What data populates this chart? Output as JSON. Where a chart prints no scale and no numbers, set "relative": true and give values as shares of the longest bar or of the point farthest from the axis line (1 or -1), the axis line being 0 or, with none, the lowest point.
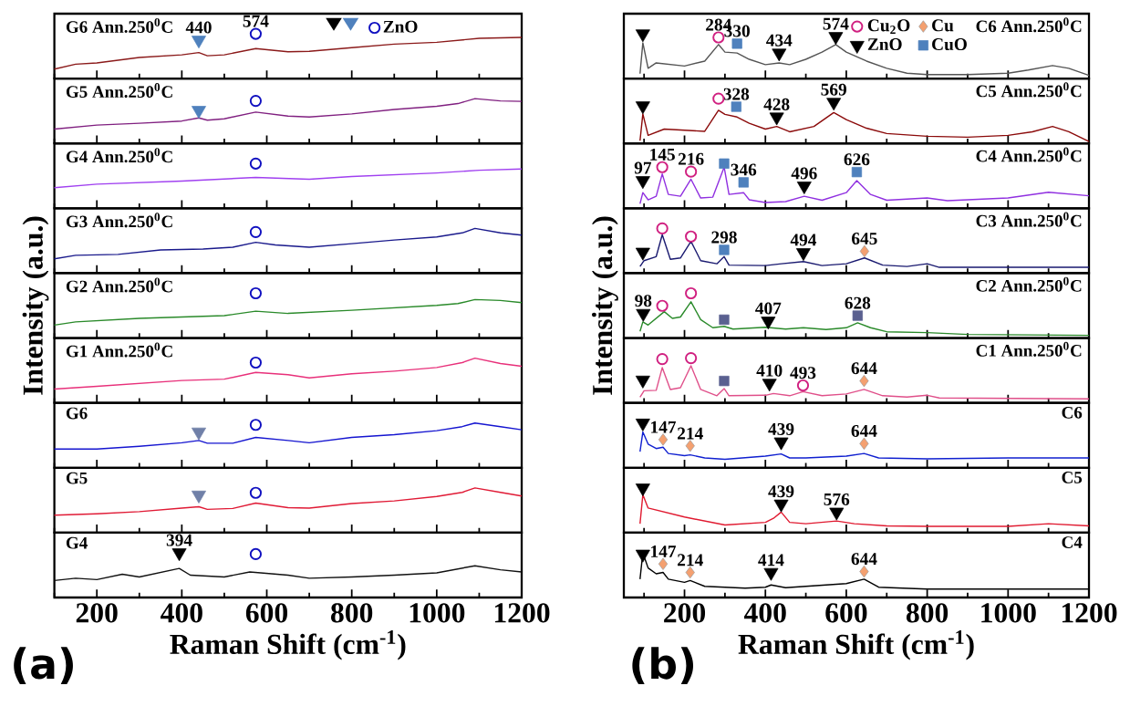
{
  "chart_data": [
    {
      "type": "line",
      "relative": true,
      "title": "G6 Ann.250$^{0}$C",
      "xlim": [
        100,
        1200
      ],
      "tick_labels": false,
      "legend": "top",
      "xticks": [
        {
          "value": 100,
          "label": null
        },
        200,
        {
          "value": 300,
          "label": null
        },
        400,
        {
          "value": 500,
          "label": null
        },
        600,
        {
          "value": 700,
          "label": null
        },
        800,
        {
          "value": 900,
          "label": null
        },
        1000,
        {
          "value": 1100,
          "label": null
        },
        1200
      ],
      "series": [
        {
          "color": "#8b1a1a",
          "x": [
            100,
            150,
            200,
            300,
            400,
            440,
            460,
            500,
            574,
            650,
            700,
            800,
            900,
            1000,
            1100,
            1200
          ],
          "values": [
            0.21,
            0.32,
            0.35,
            0.47,
            0.53,
            0.58,
            0.51,
            0.53,
            0.67,
            0.6,
            0.61,
            0.69,
            0.77,
            0.81,
            0.9,
            0.92
          ]
        },
        {
          "type": "scatter",
          "marker": "triangle",
          "color": "#000000"
        },
        {
          "type": "scatter",
          "marker": "triangle",
          "color": "#4f81bd",
          "x": [
            440
          ],
          "values": [
            0.86
          ]
        },
        {
          "type": "scatter",
          "marker": "circle",
          "name": "ZnO",
          "color": "#1010c0",
          "x": [
            574
          ],
          "values": [
            1
          ]
        }
      ],
      "annotations": [
        {
          "text": "440",
          "x": 440,
          "y": 0.86
        },
        {
          "text": "574",
          "x": 574,
          "y": 1
        }
      ]
    },
    {
      "type": "line",
      "relative": true,
      "title": "G5 Ann.250$^{0}$C",
      "xlim": [
        100,
        1200
      ],
      "tick_labels": false,
      "xticks": [
        {
          "value": 100,
          "label": null
        },
        200,
        {
          "value": 300,
          "label": null
        },
        400,
        {
          "value": 500,
          "label": null
        },
        600,
        {
          "value": 700,
          "label": null
        },
        800,
        {
          "value": 900,
          "label": null
        },
        1000,
        {
          "value": 1100,
          "label": null
        },
        1200
      ],
      "series": [
        {
          "color": "#802080",
          "x": [
            100,
            200,
            300,
            400,
            440,
            460,
            500,
            574,
            650,
            700,
            800,
            900,
            1000,
            1050,
            1090,
            1150,
            1200
          ],
          "values": [
            0.32,
            0.41,
            0.45,
            0.5,
            0.57,
            0.52,
            0.55,
            0.7,
            0.61,
            0.59,
            0.66,
            0.76,
            0.83,
            0.89,
            1,
            0.95,
            0.94
          ]
        },
        {
          "type": "scatter",
          "marker": "triangle",
          "color": "#4f81bd",
          "x": [
            440
          ],
          "values": [
            0.74
          ]
        },
        {
          "type": "scatter",
          "marker": "circle",
          "color": "#1010c0",
          "x": [
            574
          ],
          "values": [
            0.95
          ]
        }
      ]
    },
    {
      "type": "line",
      "relative": true,
      "title": "G4 Ann.250$^{0}$C",
      "xlim": [
        100,
        1200
      ],
      "tick_labels": false,
      "xticks": [
        {
          "value": 100,
          "label": null
        },
        200,
        {
          "value": 300,
          "label": null
        },
        400,
        {
          "value": 500,
          "label": null
        },
        600,
        {
          "value": 700,
          "label": null
        },
        800,
        {
          "value": 900,
          "label": null
        },
        1000,
        {
          "value": 1100,
          "label": null
        },
        1200
      ],
      "series": [
        {
          "color": "#a040f0",
          "x": [
            100,
            200,
            400,
            574,
            700,
            800,
            1000,
            1100,
            1200
          ],
          "values": [
            0.46,
            0.54,
            0.61,
            0.69,
            0.65,
            0.71,
            0.79,
            0.85,
            0.88
          ]
        },
        {
          "type": "scatter",
          "marker": "circle",
          "color": "#1010c0",
          "x": [
            574
          ],
          "values": [
            1
          ]
        }
      ]
    },
    {
      "type": "line",
      "relative": true,
      "title": "G3 Ann.250$^{0}$C",
      "xlim": [
        100,
        1200
      ],
      "tick_labels": false,
      "xticks": [
        {
          "value": 100,
          "label": null
        },
        200,
        {
          "value": 300,
          "label": null
        },
        400,
        {
          "value": 500,
          "label": null
        },
        600,
        {
          "value": 700,
          "label": null
        },
        800,
        {
          "value": 900,
          "label": null
        },
        1000,
        {
          "value": 1100,
          "label": null
        },
        1200
      ],
      "series": [
        {
          "color": "#1a1a8c",
          "x": [
            100,
            150,
            250,
            350,
            450,
            520,
            574,
            620,
            700,
            800,
            900,
            1000,
            1060,
            1090,
            1150,
            1200
          ],
          "values": [
            0.32,
            0.4,
            0.42,
            0.52,
            0.54,
            0.58,
            0.69,
            0.63,
            0.58,
            0.66,
            0.74,
            0.81,
            0.9,
            1,
            0.9,
            0.85
          ]
        },
        {
          "type": "scatter",
          "marker": "circle",
          "color": "#1010c0",
          "x": [
            574
          ],
          "values": [
            0.92
          ]
        }
      ]
    },
    {
      "type": "line",
      "relative": true,
      "title": "G2 Ann.250$^{0}$C",
      "ylabel": "Intensity (a.u.)",
      "xlim": [
        100,
        1200
      ],
      "tick_labels": false,
      "xticks": [
        {
          "value": 100,
          "label": null
        },
        200,
        {
          "value": 300,
          "label": null
        },
        400,
        {
          "value": 500,
          "label": null
        },
        600,
        {
          "value": 700,
          "label": null
        },
        800,
        {
          "value": 900,
          "label": null
        },
        1000,
        {
          "value": 1100,
          "label": null
        },
        1200
      ],
      "series": [
        {
          "color": "#2a8a2a",
          "x": [
            100,
            150,
            300,
            500,
            574,
            650,
            800,
            1000,
            1050,
            1090,
            1150,
            1200
          ],
          "values": [
            0.29,
            0.36,
            0.44,
            0.5,
            0.6,
            0.55,
            0.62,
            0.73,
            0.77,
            0.86,
            0.84,
            0.79
          ]
        },
        {
          "type": "scatter",
          "marker": "circle",
          "color": "#1010c0",
          "x": [
            574
          ],
          "values": [
            1
          ]
        }
      ]
    },
    {
      "type": "line",
      "relative": true,
      "title": "G1 Ann.250$^{0}$C",
      "xlim": [
        100,
        1200
      ],
      "tick_labels": false,
      "xticks": [
        {
          "value": 100,
          "label": null
        },
        200,
        {
          "value": 300,
          "label": null
        },
        400,
        {
          "value": 500,
          "label": null
        },
        600,
        {
          "value": 700,
          "label": null
        },
        800,
        {
          "value": 900,
          "label": null
        },
        1000,
        {
          "value": 1100,
          "label": null
        },
        1200
      ],
      "series": [
        {
          "color": "#e8307a",
          "x": [
            100,
            200,
            400,
            500,
            574,
            650,
            700,
            800,
            900,
            1000,
            1060,
            1090,
            1150,
            1200
          ],
          "values": [
            0.31,
            0.37,
            0.5,
            0.53,
            0.68,
            0.63,
            0.56,
            0.65,
            0.71,
            0.79,
            0.9,
            1,
            0.88,
            0.82
          ]
        },
        {
          "type": "scatter",
          "marker": "circle",
          "color": "#1010c0",
          "x": [
            574
          ],
          "values": [
            0.9
          ]
        }
      ]
    },
    {
      "type": "line",
      "relative": true,
      "title": "G6",
      "xlim": [
        100,
        1200
      ],
      "tick_labels": false,
      "xticks": [
        {
          "value": 100,
          "label": null
        },
        200,
        {
          "value": 300,
          "label": null
        },
        400,
        {
          "value": 500,
          "label": null
        },
        600,
        {
          "value": 700,
          "label": null
        },
        800,
        {
          "value": 900,
          "label": null
        },
        1000,
        {
          "value": 1100,
          "label": null
        },
        1200
      ],
      "series": [
        {
          "color": "#1515d0",
          "x": [
            100,
            200,
            300,
            400,
            440,
            460,
            520,
            574,
            650,
            700,
            800,
            900,
            1000,
            1060,
            1090,
            1150,
            1200
          ],
          "values": [
            0.42,
            0.42,
            0.48,
            0.56,
            0.61,
            0.55,
            0.55,
            0.68,
            0.61,
            0.56,
            0.68,
            0.74,
            0.83,
            0.92,
            1,
            0.92,
            0.85
          ]
        },
        {
          "type": "scatter",
          "marker": "triangle",
          "color": "#7080a8",
          "x": [
            440
          ],
          "values": [
            0.8
          ]
        },
        {
          "type": "scatter",
          "marker": "circle",
          "color": "#1010c0",
          "x": [
            574
          ],
          "values": [
            0.96
          ]
        }
      ]
    },
    {
      "type": "line",
      "relative": true,
      "title": "G5",
      "xlim": [
        100,
        1200
      ],
      "tick_labels": false,
      "xticks": [
        {
          "value": 100,
          "label": null
        },
        200,
        {
          "value": 300,
          "label": null
        },
        400,
        {
          "value": 500,
          "label": null
        },
        600,
        {
          "value": 700,
          "label": null
        },
        800,
        {
          "value": 900,
          "label": null
        },
        1000,
        {
          "value": 1100,
          "label": null
        },
        1200
      ],
      "series": [
        {
          "color": "#e01a35",
          "x": [
            100,
            200,
            300,
            400,
            440,
            460,
            520,
            574,
            650,
            700,
            800,
            900,
            1000,
            1060,
            1090,
            1150,
            1200
          ],
          "values": [
            0.39,
            0.42,
            0.47,
            0.55,
            0.58,
            0.52,
            0.54,
            0.66,
            0.56,
            0.55,
            0.65,
            0.71,
            0.81,
            0.9,
            1,
            0.9,
            0.82
          ]
        },
        {
          "type": "scatter",
          "marker": "triangle",
          "color": "#7080a8",
          "x": [
            440
          ],
          "values": [
            0.84
          ]
        },
        {
          "type": "scatter",
          "marker": "circle",
          "color": "#1010c0",
          "x": [
            574
          ],
          "values": [
            0.89
          ]
        }
      ]
    },
    {
      "type": "line",
      "relative": true,
      "title": "G4",
      "xlabel": "Raman Shift (cm$^{-1}$)",
      "xlim": [
        100,
        1200
      ],
      "xticks": [
        {
          "value": 100,
          "label": null
        },
        200,
        {
          "value": 300,
          "label": null
        },
        400,
        {
          "value": 500,
          "label": null
        },
        600,
        {
          "value": 700,
          "label": null
        },
        800,
        {
          "value": 900,
          "label": null
        },
        1000,
        {
          "value": 1100,
          "label": null
        },
        1200
      ],
      "series": [
        {
          "color": "#111111",
          "x": [
            100,
            150,
            200,
            260,
            300,
            394,
            420,
            500,
            560,
            650,
            700,
            800,
            900,
            1000,
            1090,
            1150,
            1200
          ],
          "values": [
            0.38,
            0.43,
            0.4,
            0.52,
            0.46,
            0.65,
            0.5,
            0.46,
            0.57,
            0.5,
            0.43,
            0.46,
            0.5,
            0.55,
            0.71,
            0.62,
            0.57
          ]
        },
        {
          "type": "scatter",
          "marker": "triangle",
          "color": "#000000",
          "x": [
            394
          ],
          "values": [
            1
          ]
        },
        {
          "type": "scatter",
          "marker": "circle",
          "color": "#1010c0",
          "x": [
            574
          ],
          "values": [
            0.97
          ]
        }
      ],
      "annotations": [
        {
          "text": "394",
          "x": 394,
          "y": 1
        },
        "(a)"
      ]
    },
    {
      "type": "line",
      "relative": true,
      "title": "C6 Ann.250$^{0}$C",
      "xlim": [
        50,
        1200
      ],
      "tick_labels": false,
      "legend": "top right",
      "xticks": [
        {
          "value": 100,
          "label": null
        },
        200,
        {
          "value": 300,
          "label": null
        },
        400,
        {
          "value": 500,
          "label": null
        },
        600,
        {
          "value": 700,
          "label": null
        },
        800,
        {
          "value": 900,
          "label": null
        },
        1000,
        {
          "value": 1100,
          "label": null
        },
        1200
      ],
      "series": [
        {
          "color": "#555555",
          "x": [
            90,
            97,
            110,
            130,
            200,
            250,
            284,
            300,
            330,
            360,
            400,
            434,
            460,
            500,
            540,
            574,
            600,
            650,
            700,
            750,
            800,
            900,
            1000,
            1050,
            1110,
            1150,
            1200
          ],
          "values": [
            0.11,
            0.8,
            0.23,
            0.35,
            0.28,
            0.39,
            0.76,
            0.59,
            0.57,
            0.43,
            0.31,
            0.35,
            0.31,
            0.43,
            0.59,
            0.76,
            0.59,
            0.39,
            0.23,
            0.12,
            0.09,
            0.09,
            0.12,
            0.19,
            0.29,
            0.23,
            0.07
          ]
        },
        {
          "type": "scatter",
          "marker": "circle",
          "name": "Cu$_{2}$O",
          "color": "#d02080",
          "x": [
            284
          ],
          "values": [
            0.92
          ]
        },
        {
          "type": "scatter",
          "marker": "diamond",
          "name": "Cu",
          "color": "#f4a070"
        },
        {
          "type": "scatter",
          "marker": "triangle",
          "name": "ZnO",
          "color": "#000000",
          "x": [
            97,
            434,
            574
          ],
          "values": [
            1,
            0.57,
            0.94
          ]
        },
        {
          "type": "scatter",
          "marker": "square",
          "name": "CuO",
          "color": "#4f81bd",
          "x": [
            330
          ],
          "values": [
            0.78
          ]
        }
      ],
      "annotations": [
        {
          "text": "284",
          "x": 284,
          "y": 0.92
        },
        {
          "text": "330",
          "x": 330,
          "y": 0.78
        },
        {
          "text": "434",
          "x": 434,
          "y": 0.57
        },
        {
          "text": "574",
          "x": 574,
          "y": 0.94
        }
      ]
    },
    {
      "type": "line",
      "relative": true,
      "title": "C5 Ann.250$^{0}$C",
      "xlim": [
        50,
        1200
      ],
      "tick_labels": false,
      "xticks": [
        {
          "value": 100,
          "label": null
        },
        200,
        {
          "value": 300,
          "label": null
        },
        400,
        {
          "value": 500,
          "label": null
        },
        600,
        {
          "value": 700,
          "label": null
        },
        800,
        {
          "value": 900,
          "label": null
        },
        1000,
        {
          "value": 1100,
          "label": null
        },
        1200
      ],
      "series": [
        {
          "color": "#8b0a0a",
          "x": [
            90,
            97,
            110,
            150,
            250,
            284,
            300,
            330,
            360,
            400,
            428,
            460,
            520,
            569,
            600,
            650,
            700,
            800,
            900,
            1000,
            1060,
            1110,
            1150,
            1200
          ],
          "values": [
            0.06,
            0.66,
            0.18,
            0.32,
            0.27,
            0.74,
            0.65,
            0.59,
            0.45,
            0.32,
            0.38,
            0.26,
            0.38,
            0.69,
            0.53,
            0.34,
            0.22,
            0.16,
            0.14,
            0.18,
            0.26,
            0.38,
            0.26,
            0.04
          ]
        },
        {
          "type": "scatter",
          "marker": "circle",
          "color": "#d02080",
          "x": [
            284
          ],
          "values": [
            1
          ]
        },
        {
          "type": "scatter",
          "marker": "triangle",
          "color": "#000000",
          "x": [
            97,
            428,
            569
          ],
          "values": [
            0.84,
            0.59,
            0.92
          ]
        },
        {
          "type": "scatter",
          "marker": "square",
          "color": "#4f81bd",
          "x": [
            328
          ],
          "values": [
            0.82
          ]
        }
      ],
      "annotations": [
        {
          "text": "328",
          "x": 328,
          "y": 0.82
        },
        {
          "text": "428",
          "x": 428,
          "y": 0.59
        },
        {
          "text": "569",
          "x": 569,
          "y": 0.92
        }
      ]
    },
    {
      "type": "line",
      "relative": true,
      "title": "C4 Ann.250$^{0}$C",
      "xlim": [
        50,
        1200
      ],
      "tick_labels": false,
      "xticks": [
        {
          "value": 100,
          "label": null
        },
        200,
        {
          "value": 300,
          "label": null
        },
        400,
        {
          "value": 500,
          "label": null
        },
        600,
        {
          "value": 700,
          "label": null
        },
        800,
        {
          "value": 900,
          "label": null
        },
        1000,
        {
          "value": 1100,
          "label": null
        },
        1200
      ],
      "series": [
        {
          "color": "#9030e0",
          "x": [
            90,
            97,
            110,
            130,
            145,
            160,
            190,
            216,
            240,
            270,
            298,
            310,
            346,
            360,
            400,
            450,
            496,
            540,
            600,
            626,
            660,
            700,
            800,
            850,
            1000,
            1100,
            1200
          ],
          "values": [
            0.1,
            0.35,
            0.19,
            0.27,
            0.77,
            0.31,
            0.27,
            0.65,
            0.23,
            0.25,
            0.92,
            0.31,
            0.35,
            0.19,
            0.13,
            0.15,
            0.27,
            0.18,
            0.35,
            0.62,
            0.31,
            0.18,
            0.23,
            0.17,
            0.23,
            0.36,
            0.28
          ]
        },
        {
          "type": "scatter",
          "marker": "circle",
          "color": "#d02080",
          "x": [
            145,
            216
          ],
          "values": [
            0.92,
            0.82
          ]
        },
        {
          "type": "scatter",
          "marker": "triangle",
          "color": "#000000",
          "x": [
            97,
            496
          ],
          "values": [
            0.62,
            0.5
          ]
        },
        {
          "type": "scatter",
          "marker": "square",
          "color": "#4f81bd",
          "x": [
            298,
            346,
            626
          ],
          "values": [
            1,
            0.58,
            0.81
          ]
        }
      ],
      "annotations": [
        {
          "text": "97",
          "x": 97,
          "y": 0.62
        },
        {
          "text": "145",
          "x": 145,
          "y": 0.92
        },
        {
          "text": "216",
          "x": 216,
          "y": 0.82
        },
        {
          "text": "346",
          "x": 346,
          "y": 0.58
        },
        {
          "text": "496",
          "x": 496,
          "y": 0.5
        },
        {
          "text": "626",
          "x": 626,
          "y": 0.81
        }
      ]
    },
    {
      "type": "line",
      "relative": true,
      "title": "C3 Ann.250$^{0}$C",
      "xlim": [
        50,
        1200
      ],
      "tick_labels": false,
      "xticks": [
        {
          "value": 100,
          "label": null
        },
        200,
        {
          "value": 300,
          "label": null
        },
        400,
        {
          "value": 500,
          "label": null
        },
        600,
        {
          "value": 700,
          "label": null
        },
        800,
        {
          "value": 900,
          "label": null
        },
        1000,
        {
          "value": 1100,
          "label": null
        },
        1200
      ],
      "series": [
        {
          "color": "#1a1a70",
          "x": [
            90,
            100,
            130,
            145,
            165,
            190,
            216,
            240,
            280,
            298,
            310,
            400,
            440,
            494,
            540,
            600,
            645,
            690,
            750,
            800,
            830,
            1000,
            1200
          ],
          "values": [
            0.15,
            0.28,
            0.37,
            0.86,
            0.31,
            0.34,
            0.71,
            0.28,
            0.21,
            0.37,
            0.18,
            0.17,
            0.21,
            0.26,
            0.17,
            0.21,
            0.34,
            0.18,
            0.15,
            0.21,
            0.13,
            0.13,
            0.13
          ]
        },
        {
          "type": "scatter",
          "marker": "circle",
          "color": "#d02080",
          "x": [
            145,
            216
          ],
          "values": [
            1,
            0.82
          ]
        },
        {
          "type": "scatter",
          "marker": "triangle",
          "color": "#000000",
          "x": [
            97,
            494
          ],
          "values": [
            0.47,
            0.46
          ]
        },
        {
          "type": "scatter",
          "marker": "square",
          "color": "#4f81bd",
          "x": [
            298
          ],
          "values": [
            0.52
          ]
        },
        {
          "type": "scatter",
          "marker": "diamond",
          "color": "#f4a070",
          "x": [
            645
          ],
          "values": [
            0.49
          ]
        }
      ],
      "annotations": [
        {
          "text": "298",
          "x": 298,
          "y": 0.52
        },
        {
          "text": "494",
          "x": 494,
          "y": 0.46
        },
        {
          "text": "645",
          "x": 645,
          "y": 0.49
        }
      ]
    },
    {
      "type": "line",
      "relative": true,
      "title": "C2 Ann.250$^{0}$C",
      "ylabel": "Intensity (a.u.)",
      "xlim": [
        50,
        1200
      ],
      "tick_labels": false,
      "xticks": [
        {
          "value": 100,
          "label": null
        },
        200,
        {
          "value": 300,
          "label": null
        },
        400,
        {
          "value": 500,
          "label": null
        },
        600,
        {
          "value": 700,
          "label": null
        },
        800,
        {
          "value": 900,
          "label": null
        },
        1000,
        {
          "value": 1100,
          "label": null
        },
        1200
      ],
      "series": [
        {
          "color": "#2a8a2a",
          "x": [
            90,
            97,
            110,
            150,
            170,
            190,
            216,
            240,
            270,
            298,
            320,
            400,
            450,
            494,
            550,
            600,
            628,
            660,
            700,
            800,
            900,
            1200
          ],
          "values": [
            0.15,
            0.36,
            0.29,
            0.59,
            0.44,
            0.47,
            0.81,
            0.41,
            0.23,
            0.26,
            0.2,
            0.24,
            0.2,
            0.23,
            0.19,
            0.23,
            0.34,
            0.23,
            0.14,
            0.12,
            0.08,
            0.06
          ]
        },
        {
          "type": "scatter",
          "marker": "circle",
          "color": "#d02080",
          "x": [
            145,
            216
          ],
          "values": [
            0.72,
            1
          ]
        },
        {
          "type": "scatter",
          "marker": "triangle",
          "color": "#000000",
          "x": [
            98,
            407
          ],
          "values": [
            0.55,
            0.38
          ]
        },
        {
          "type": "scatter",
          "marker": "square",
          "color": "#5a6090",
          "x": [
            298,
            628
          ],
          "values": [
            0.41,
            0.5
          ]
        }
      ],
      "annotations": [
        {
          "text": "98",
          "x": 98,
          "y": 0.55
        },
        {
          "text": "407",
          "x": 407,
          "y": 0.38
        },
        {
          "text": "628",
          "x": 628,
          "y": 0.5
        }
      ]
    },
    {
      "type": "line",
      "relative": true,
      "title": "C1 Ann.250$^{0}$C",
      "xlim": [
        50,
        1200
      ],
      "tick_labels": false,
      "xticks": [
        {
          "value": 100,
          "label": null
        },
        200,
        {
          "value": 300,
          "label": null
        },
        400,
        {
          "value": 500,
          "label": null
        },
        600,
        {
          "value": 700,
          "label": null
        },
        800,
        {
          "value": 900,
          "label": null
        },
        1000,
        {
          "value": 1100,
          "label": null
        },
        1200
      ],
      "series": [
        {
          "color": "#e0508a",
          "x": [
            90,
            100,
            130,
            145,
            165,
            190,
            216,
            240,
            280,
            298,
            310,
            400,
            420,
            460,
            493,
            540,
            600,
            644,
            690,
            750,
            800,
            830,
            1200
          ],
          "values": [
            0.13,
            0.27,
            0.28,
            0.79,
            0.3,
            0.34,
            0.83,
            0.3,
            0.16,
            0.32,
            0.16,
            0.17,
            0.21,
            0.16,
            0.25,
            0.16,
            0.2,
            0.3,
            0.16,
            0.13,
            0.17,
            0.11,
            0.09
          ]
        },
        {
          "type": "scatter",
          "marker": "circle",
          "color": "#d02080",
          "x": [
            145,
            216,
            493
          ],
          "values": [
            0.98,
            1,
            0.39
          ]
        },
        {
          "type": "scatter",
          "marker": "triangle",
          "color": "#000000",
          "x": [
            97,
            410
          ],
          "values": [
            0.51,
            0.44
          ]
        },
        {
          "type": "scatter",
          "marker": "square",
          "color": "#5a6090",
          "x": [
            298
          ],
          "values": [
            0.49
          ]
        },
        {
          "type": "scatter",
          "marker": "diamond",
          "color": "#f4a070",
          "x": [
            644
          ],
          "values": [
            0.49
          ]
        }
      ],
      "annotations": [
        {
          "text": "410",
          "x": 410,
          "y": 0.44
        },
        {
          "text": "493",
          "x": 493,
          "y": 0.39
        },
        {
          "text": "644",
          "x": 644,
          "y": 0.49
        }
      ]
    },
    {
      "type": "line",
      "relative": true,
      "title": "C6",
      "xlim": [
        50,
        1200
      ],
      "tick_labels": false,
      "xticks": [
        {
          "value": 100,
          "label": null
        },
        200,
        {
          "value": 300,
          "label": null
        },
        400,
        {
          "value": 500,
          "label": null
        },
        600,
        {
          "value": 700,
          "label": null
        },
        800,
        {
          "value": 900,
          "label": null
        },
        1000,
        {
          "value": 1100,
          "label": null
        },
        1200
      ],
      "series": [
        {
          "color": "#1020d0",
          "x": [
            90,
            97,
            110,
            130,
            147,
            160,
            200,
            214,
            250,
            300,
            400,
            439,
            460,
            500,
            600,
            644,
            680,
            800,
            1000,
            1200
          ],
          "values": [
            0.36,
            0.8,
            0.53,
            0.43,
            0.46,
            0.32,
            0.27,
            0.29,
            0.22,
            0.19,
            0.26,
            0.31,
            0.22,
            0.22,
            0.26,
            0.32,
            0.22,
            0.2,
            0.22,
            0.22
          ]
        },
        {
          "type": "scatter",
          "marker": "triangle",
          "color": "#000000",
          "x": [
            97,
            439
          ],
          "values": [
            1,
            0.58
          ]
        },
        {
          "type": "scatter",
          "marker": "diamond",
          "color": "#f4a070",
          "x": [
            147,
            214,
            644
          ],
          "values": [
            0.63,
            0.49,
            0.54
          ]
        }
      ],
      "annotations": [
        {
          "text": "147",
          "x": 147,
          "y": 0.63
        },
        {
          "text": "214",
          "x": 214,
          "y": 0.49
        },
        {
          "text": "439",
          "x": 439,
          "y": 0.58
        },
        {
          "text": "644",
          "x": 644,
          "y": 0.54
        }
      ]
    },
    {
      "type": "line",
      "relative": true,
      "title": "C5",
      "xlim": [
        50,
        1200
      ],
      "tick_labels": false,
      "xticks": [
        {
          "value": 100,
          "label": null
        },
        200,
        {
          "value": 300,
          "label": null
        },
        400,
        {
          "value": 500,
          "label": null
        },
        600,
        {
          "value": 700,
          "label": null
        },
        800,
        {
          "value": 900,
          "label": null
        },
        1000,
        {
          "value": 1100,
          "label": null
        },
        1200
      ],
      "series": [
        {
          "color": "#e01a30",
          "x": [
            90,
            97,
            110,
            200,
            300,
            400,
            420,
            439,
            460,
            500,
            576,
            620,
            700,
            800,
            1000,
            1100,
            1200
          ],
          "values": [
            0.2,
            0.85,
            0.55,
            0.35,
            0.17,
            0.23,
            0.32,
            0.46,
            0.23,
            0.2,
            0.26,
            0.2,
            0.15,
            0.14,
            0.14,
            0.2,
            0.15
          ]
        },
        {
          "type": "scatter",
          "marker": "triangle",
          "color": "#000000",
          "x": [
            97,
            439,
            576
          ],
          "values": [
            1,
            0.64,
            0.46
          ]
        }
      ],
      "annotations": [
        {
          "text": "439",
          "x": 439,
          "y": 0.64
        },
        {
          "text": "576",
          "x": 576,
          "y": 0.46
        }
      ]
    },
    {
      "type": "line",
      "relative": true,
      "title": "C4",
      "xlabel": "Raman Shift (cm$^{-1}$)",
      "xlim": [
        50,
        1200
      ],
      "xticks": [
        {
          "value": 100,
          "label": null
        },
        200,
        {
          "value": 300,
          "label": null
        },
        400,
        {
          "value": 500,
          "label": null
        },
        600,
        {
          "value": 700,
          "label": null
        },
        800,
        {
          "value": 900,
          "label": null
        },
        1000,
        {
          "value": 1100,
          "label": null
        },
        1200
      ],
      "series": [
        {
          "color": "#000000",
          "x": [
            90,
            97,
            110,
            130,
            147,
            160,
            200,
            214,
            250,
            350,
            400,
            414,
            450,
            500,
            600,
            644,
            680,
            800,
            1200
          ],
          "values": [
            0.41,
            1,
            0.66,
            0.53,
            0.56,
            0.41,
            0.34,
            0.38,
            0.25,
            0.21,
            0.23,
            0.28,
            0.22,
            0.25,
            0.31,
            0.41,
            0.23,
            0.19,
            0.19
          ]
        },
        {
          "type": "scatter",
          "marker": "triangle",
          "color": "#000000",
          "x": [
            97,
            414
          ],
          "values": [
            0.97,
            0.56
          ]
        },
        {
          "type": "scatter",
          "marker": "diamond",
          "color": "#f4a070",
          "x": [
            147,
            214,
            644
          ],
          "values": [
            0.75,
            0.56,
            0.58
          ]
        }
      ],
      "annotations": [
        {
          "text": "147",
          "x": 147,
          "y": 0.75
        },
        {
          "text": "214",
          "x": 214,
          "y": 0.56
        },
        {
          "text": "414",
          "x": 414,
          "y": 0.56
        },
        {
          "text": "644",
          "x": 644,
          "y": 0.58
        },
        "(b)"
      ]
    }
  ]
}
